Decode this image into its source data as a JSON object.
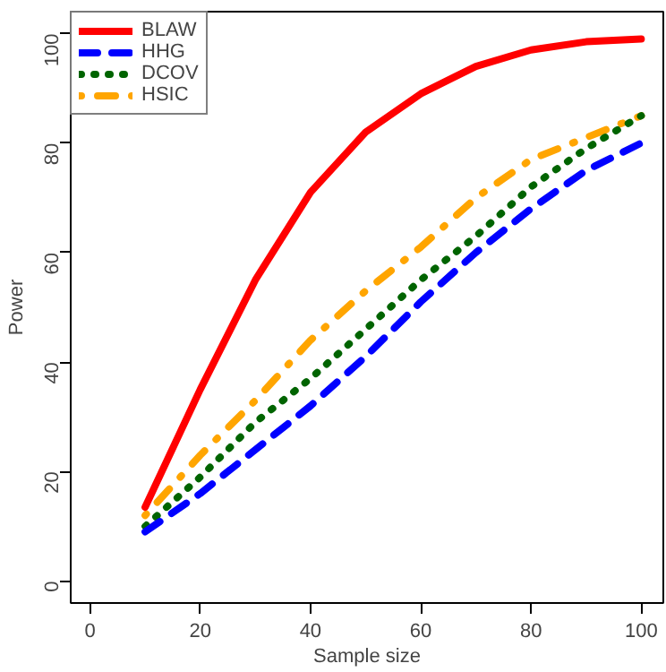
{
  "chart_data": {
    "type": "line",
    "xlabel": "Sample size",
    "ylabel": "Power",
    "x": [
      10,
      20,
      30,
      40,
      50,
      60,
      70,
      80,
      90,
      100
    ],
    "xlim": [
      -3.5,
      104
    ],
    "ylim": [
      -4,
      104
    ],
    "xticks": [
      0,
      20,
      40,
      60,
      80,
      100
    ],
    "yticks": [
      0,
      20,
      40,
      60,
      80,
      100
    ],
    "grid": false,
    "legend": "top left",
    "marker": "none",
    "series": [
      {
        "name": "BLAW",
        "color": "#ff0000",
        "line_style": "solid",
        "values": [
          13.5,
          35,
          55,
          71,
          82,
          89,
          94,
          97,
          98.5,
          99
        ]
      },
      {
        "name": "HHG",
        "color": "#0000ff",
        "line_style": "dashed",
        "values": [
          9,
          16,
          24,
          32,
          41,
          51,
          60,
          68,
          75,
          80
        ]
      },
      {
        "name": "DCOV",
        "color": "#006400",
        "line_style": "dotted",
        "values": [
          10,
          19,
          29,
          37,
          46,
          55,
          63,
          72,
          79,
          85
        ]
      },
      {
        "name": "HSIC",
        "color": "#ffa500",
        "line_style": "dashdot",
        "values": [
          12,
          23,
          33,
          44,
          53,
          61,
          70,
          77,
          81,
          85
        ]
      }
    ]
  }
}
